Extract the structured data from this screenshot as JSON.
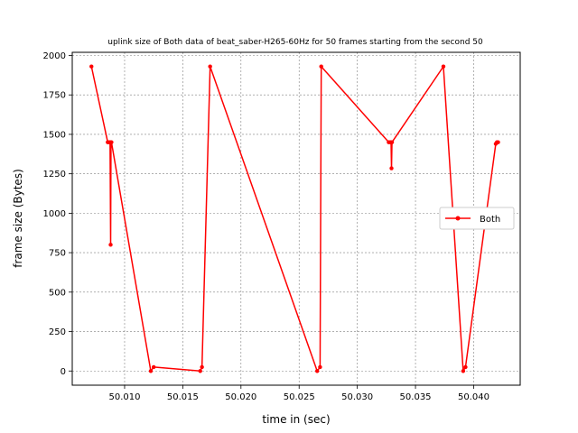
{
  "chart_data": {
    "type": "line",
    "title": "uplink size of Both data of beat_saber-H265-60Hz for 50 frames starting from the second 50",
    "xlabel": "time in (sec)",
    "ylabel": "frame size (Bytes)",
    "xlim": [
      50.0055,
      50.044
    ],
    "ylim": [
      -90,
      2020
    ],
    "x_ticks": [
      50.01,
      50.015,
      50.02,
      50.025,
      50.03,
      50.035,
      50.04
    ],
    "x_tick_labels": [
      "50.010",
      "50.015",
      "50.020",
      "50.025",
      "50.030",
      "50.035",
      "50.040"
    ],
    "y_ticks": [
      0,
      250,
      500,
      750,
      1000,
      1250,
      1500,
      1750,
      2000
    ],
    "y_tick_labels": [
      "0",
      "250",
      "500",
      "750",
      "1000",
      "1250",
      "1500",
      "1750",
      "2000"
    ],
    "grid": true,
    "legend_position": "center-right",
    "series": [
      {
        "name": "Both",
        "color": "#ff0000",
        "marker": "circle",
        "x": [
          50.00715,
          50.00855,
          50.00865,
          50.00875,
          50.0088,
          50.00883,
          50.00887,
          50.01225,
          50.0125,
          50.0165,
          50.01665,
          50.01735,
          50.02655,
          50.0268,
          50.0269,
          50.0327,
          50.03283,
          50.0329,
          50.03294,
          50.03298,
          50.0374,
          50.0391,
          50.0393,
          50.0419,
          50.042,
          50.0421
        ],
        "y": [
          1930,
          1450,
          1450,
          1450,
          800,
          1450,
          1450,
          0,
          25,
          0,
          25,
          1930,
          0,
          25,
          1930,
          1450,
          1450,
          1450,
          1285,
          1450,
          1930,
          0,
          25,
          1440,
          1450,
          1450
        ]
      }
    ]
  }
}
